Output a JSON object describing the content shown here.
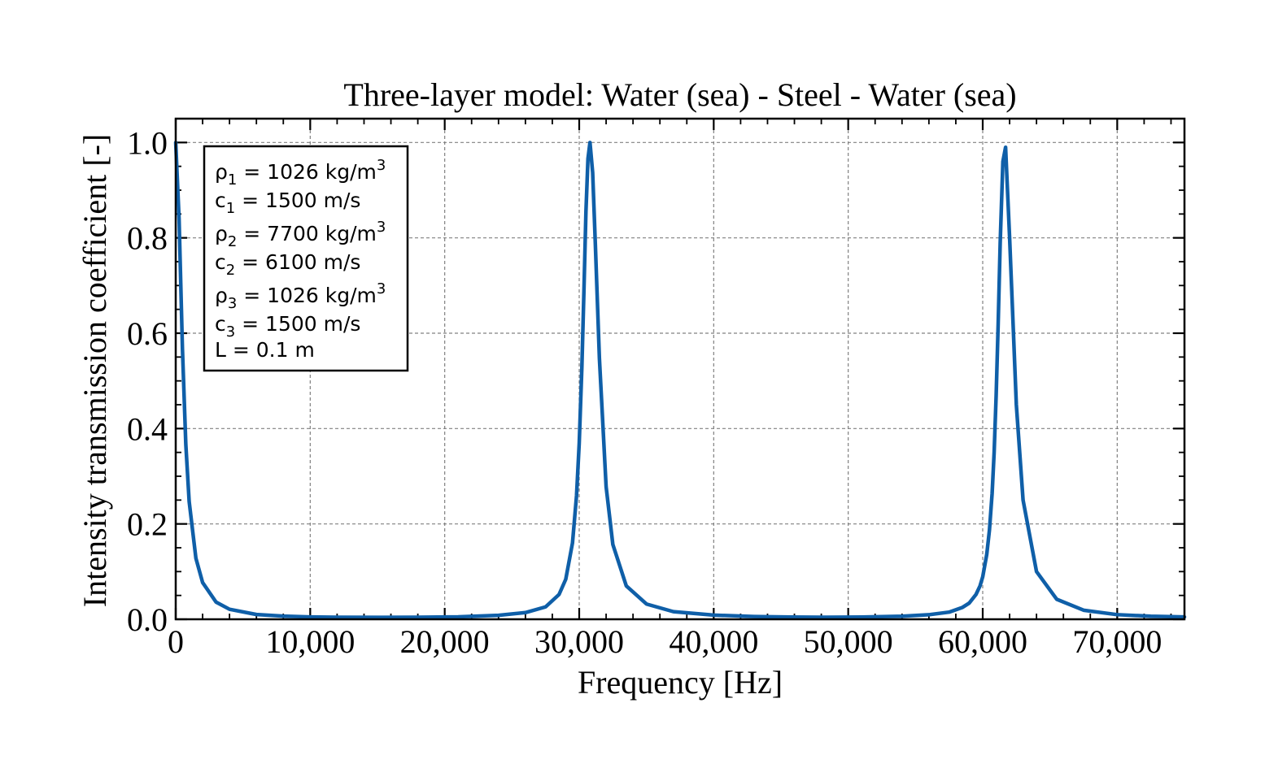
{
  "chart_data": {
    "type": "line",
    "title": "Three-layer model: Water (sea) - Steel - Water (sea)",
    "xlabel": "Frequency [Hz]",
    "ylabel": "Intensity transmission coefficient [-]",
    "xlim": [
      0,
      75000
    ],
    "ylim": [
      0,
      1.05
    ],
    "grid": true,
    "x_ticks": [
      0,
      10000,
      20000,
      30000,
      40000,
      50000,
      60000,
      70000
    ],
    "x_tick_labels": [
      "0",
      "10,000",
      "20,000",
      "30,000",
      "40,000",
      "50,000",
      "60,000",
      "70,000"
    ],
    "y_ticks": [
      0.0,
      0.2,
      0.4,
      0.6,
      0.8,
      1.0
    ],
    "y_tick_labels": [
      "0.0",
      "0.2",
      "0.4",
      "0.6",
      "0.8",
      "1.0"
    ],
    "legend_placement": "top-left",
    "annotation": [
      {
        "sym": "ρ",
        "sub": "1",
        "value": "1026 kg/m",
        "sup": "3"
      },
      {
        "sym": "c",
        "sub": "1",
        "value": "1500 m/s",
        "sup": ""
      },
      {
        "sym": "ρ",
        "sub": "2",
        "value": "7700 kg/m",
        "sup": "3"
      },
      {
        "sym": "c",
        "sub": "2",
        "value": "6100 m/s",
        "sup": ""
      },
      {
        "sym": "ρ",
        "sub": "3",
        "value": "1026 kg/m",
        "sup": "3"
      },
      {
        "sym": "c",
        "sub": "3",
        "value": "1500 m/s",
        "sup": ""
      },
      {
        "sym": "L",
        "sub": "",
        "value": "0.1 m",
        "sup": ""
      }
    ],
    "series": [
      {
        "color": "#0f5fa8",
        "x": [
          0,
          250,
          500,
          750,
          1000,
          1500,
          2000,
          3000,
          4000,
          6000,
          8000,
          10000,
          12000,
          15250,
          18000,
          21000,
          24000,
          26000,
          27500,
          28500,
          29000,
          29500,
          29800,
          30000,
          30200,
          30350,
          30500,
          30650,
          30800,
          31000,
          31200,
          31500,
          32000,
          32500,
          33500,
          35000,
          37000,
          40000,
          43000,
          45750,
          48000,
          51000,
          54000,
          56000,
          57500,
          58500,
          59000,
          59500,
          59800,
          60000,
          60300,
          60500,
          60700,
          60850,
          61000,
          61150,
          61300,
          61500,
          61700,
          62000,
          62500,
          63000,
          64000,
          65500,
          67500,
          70000,
          72500,
          75000
        ],
        "y": [
          1.0,
          0.84,
          0.567,
          0.367,
          0.247,
          0.128,
          0.077,
          0.036,
          0.021,
          0.01,
          0.0067,
          0.005,
          0.0043,
          0.004,
          0.0042,
          0.0052,
          0.0083,
          0.014,
          0.026,
          0.052,
          0.084,
          0.16,
          0.259,
          0.369,
          0.531,
          0.688,
          0.855,
          0.966,
          1.0,
          0.937,
          0.786,
          0.548,
          0.278,
          0.157,
          0.07,
          0.032,
          0.016,
          0.0087,
          0.0058,
          0.0047,
          0.0043,
          0.0046,
          0.0064,
          0.0095,
          0.015,
          0.025,
          0.034,
          0.052,
          0.07,
          0.089,
          0.136,
          0.187,
          0.264,
          0.35,
          0.47,
          0.62,
          0.79,
          0.96,
          0.99,
          0.8,
          0.45,
          0.25,
          0.1,
          0.042,
          0.019,
          0.0097,
          0.0064,
          0.0049
        ]
      }
    ]
  }
}
